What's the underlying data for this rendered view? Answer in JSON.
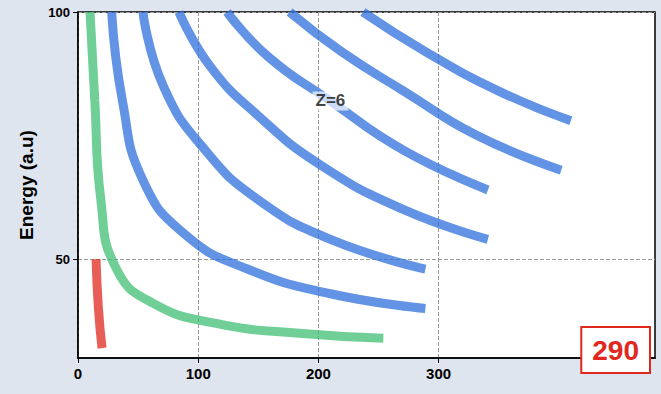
{
  "chart_data": {
    "type": "line",
    "y_label": "Energy (a.u)",
    "xlim": [
      0,
      480
    ],
    "xticks": [
      0,
      100,
      200,
      300
    ],
    "ylim": [
      30,
      100
    ],
    "yticks": [
      50,
      100
    ],
    "grid": true,
    "series": [
      {
        "color": "#3fbf74",
        "x": [
          10,
          14,
          19,
          32,
          63,
          115,
          184,
          254
        ],
        "values": [
          100,
          82,
          62,
          48,
          41,
          37,
          35,
          34
        ]
      },
      {
        "color": "#2f6fdc",
        "x": [
          28,
          37,
          54,
          89,
          141,
          210,
          289
        ],
        "values": [
          100,
          82,
          66,
          55,
          48,
          43,
          40
        ]
      },
      {
        "color": "#2f6fdc",
        "x": [
          54,
          71,
          106,
          150,
          210,
          289
        ],
        "values": [
          100,
          85,
          72,
          62,
          54,
          48
        ]
      },
      {
        "color": "#2f6fdc",
        "x": [
          84,
          110,
          150,
          202,
          271,
          341
        ],
        "values": [
          100,
          89,
          79,
          69,
          60,
          54
        ]
      },
      {
        "color": "#2f6fdc",
        "x": [
          124,
          158,
          210,
          271,
          341
        ],
        "values": [
          100,
          91,
          82,
          72,
          64
        ]
      },
      {
        "color": "#2f6fdc",
        "x": [
          176,
          219,
          271,
          332,
          402
        ],
        "values": [
          100,
          92,
          84,
          75,
          68
        ]
      },
      {
        "color": "#2f6fdc",
        "x": [
          237,
          289,
          350,
          410
        ],
        "values": [
          100,
          92,
          84,
          78
        ]
      },
      {
        "color": "#e0281e",
        "x": [
          15,
          17,
          20
        ],
        "values": [
          50,
          40,
          32
        ]
      }
    ],
    "annotations": [
      {
        "text": "Z=6",
        "x": 210,
        "y": 82
      },
      {
        "text": "290",
        "color": "#e0281e"
      }
    ]
  }
}
